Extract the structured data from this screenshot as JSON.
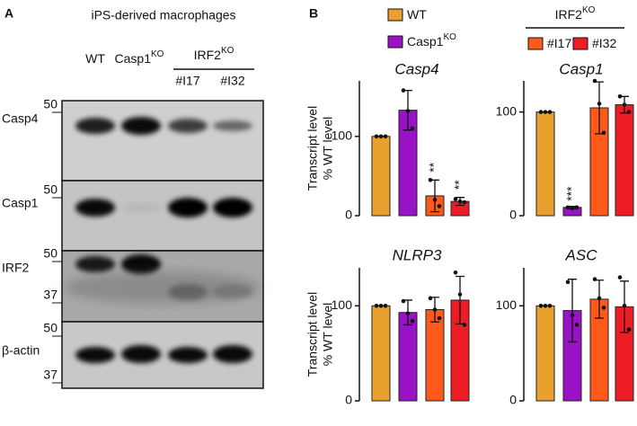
{
  "panel_a": {
    "label": "A",
    "title": "iPS-derived macrophages",
    "lanes": [
      {
        "base": "WT"
      },
      {
        "base": "Casp1",
        "sup": "KO"
      }
    ],
    "group": {
      "base": "IRF2",
      "sup": "KO",
      "lanes": [
        "#I17",
        "#I32"
      ]
    },
    "blots": [
      {
        "name": "Casp4",
        "markers": [
          "50"
        ]
      },
      {
        "name": "Casp1",
        "markers": [
          "50"
        ]
      },
      {
        "name": "IRF2",
        "markers": [
          "50",
          "37"
        ]
      },
      {
        "name": "β-actin",
        "markers": [
          "50",
          "37"
        ]
      }
    ]
  },
  "panel_b": {
    "label": "B",
    "legend": [
      {
        "name": "WT",
        "color": "#e9a02f"
      },
      {
        "name": "Casp1",
        "sup": "KO",
        "color": "#9a12c6"
      },
      {
        "name": "#I17",
        "color": "#ff5a1c"
      },
      {
        "name": "#I32",
        "color": "#ee1d25"
      }
    ],
    "legend_group": {
      "base": "IRF2",
      "sup": "KO"
    }
  },
  "chart_data": [
    {
      "type": "bar",
      "title": "Casp4",
      "ylabel": [
        "Transcript level",
        "% WT level"
      ],
      "ylim": [
        0,
        170
      ],
      "yticks": [
        0,
        100
      ],
      "values": [
        100,
        133,
        25,
        18
      ],
      "errors": [
        0,
        25,
        20,
        5
      ],
      "points": [
        [
          100,
          100,
          100
        ],
        [
          158,
          132,
          110
        ],
        [
          45,
          20,
          12
        ],
        [
          21,
          18,
          17
        ]
      ],
      "annotations": [
        {
          "index": 2,
          "text": "**"
        },
        {
          "index": 3,
          "text": "**"
        }
      ]
    },
    {
      "type": "bar",
      "title": "Casp1",
      "ylim": [
        0,
        130
      ],
      "yticks": [
        0,
        100
      ],
      "values": [
        100,
        8,
        104,
        107
      ],
      "errors": [
        0,
        1,
        25,
        8
      ],
      "points": [
        [
          100,
          100,
          100
        ],
        [
          8,
          7,
          8
        ],
        [
          130,
          108,
          80
        ],
        [
          115,
          107,
          100
        ]
      ],
      "annotations": [
        {
          "index": 1,
          "text": "***"
        }
      ]
    },
    {
      "type": "bar",
      "title": "NLRP3",
      "ylabel": [
        "Transcript level",
        "% WT level"
      ],
      "ylim": [
        0,
        140
      ],
      "yticks": [
        0,
        100
      ],
      "values": [
        100,
        93,
        96,
        106
      ],
      "errors": [
        0,
        13,
        13,
        25
      ],
      "points": [
        [
          100,
          100,
          100
        ],
        [
          105,
          92,
          84
        ],
        [
          108,
          96,
          87
        ],
        [
          135,
          112,
          80
        ]
      ]
    },
    {
      "type": "bar",
      "title": "ASC",
      "ylim": [
        0,
        140
      ],
      "yticks": [
        0,
        100
      ],
      "values": [
        100,
        95,
        107,
        99
      ],
      "errors": [
        0,
        33,
        20,
        27
      ],
      "points": [
        [
          100,
          100,
          100
        ],
        [
          125,
          90,
          80
        ],
        [
          128,
          108,
          98
        ],
        [
          130,
          100,
          75
        ]
      ]
    }
  ]
}
